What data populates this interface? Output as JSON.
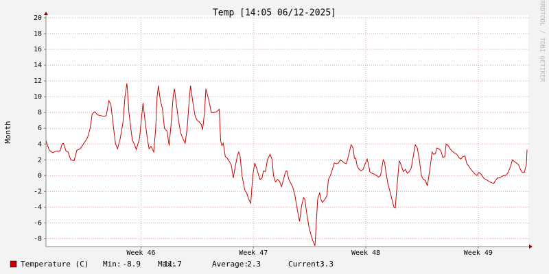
{
  "chart_data": {
    "type": "line",
    "title": "Temp [14:05 06/12-2025]",
    "y_label": "Month",
    "side_text": "RRDTOOL / TOBI OETIKER",
    "x": [
      0,
      5,
      10,
      15,
      21,
      24,
      26,
      30,
      33,
      37,
      42,
      46,
      51,
      56,
      62,
      66,
      69,
      73,
      77,
      82,
      87,
      90,
      94,
      97,
      101,
      104,
      107,
      111,
      115,
      118,
      121,
      124,
      126,
      129,
      132,
      135,
      140,
      143,
      145,
      148,
      151,
      154,
      157,
      161,
      164,
      166,
      168,
      171,
      174,
      177,
      181,
      184,
      187,
      190,
      192,
      195,
      198,
      201,
      204,
      208,
      211,
      214,
      216,
      220,
      223,
      226,
      229,
      232,
      234,
      237,
      239,
      242,
      245,
      247,
      251,
      255,
      259,
      261,
      263,
      265,
      268,
      271,
      274,
      277,
      280,
      283,
      286,
      288,
      290,
      293,
      297,
      300,
      303,
      306,
      309,
      312,
      315,
      318,
      320,
      323,
      325,
      328,
      331,
      335,
      338,
      340,
      343,
      346,
      349,
      352,
      355,
      358,
      360,
      363,
      366,
      369,
      372,
      376,
      379,
      382,
      385,
      387,
      390,
      393,
      396,
      399,
      402,
      404,
      406,
      409,
      411,
      413,
      417,
      420,
      422,
      425,
      428,
      431,
      434,
      437,
      440,
      443,
      446,
      449,
      452,
      456,
      459,
      461,
      463,
      465,
      468,
      471,
      474,
      477,
      480,
      482,
      484,
      487,
      490,
      494,
      497,
      500,
      502,
      504,
      506,
      508,
      511,
      514,
      517,
      520,
      522,
      524,
      526,
      528,
      530,
      534,
      537,
      540,
      543,
      546,
      549,
      552,
      555,
      558,
      561,
      564,
      567,
      570,
      574,
      577,
      579,
      582,
      584,
      587,
      590,
      593,
      596,
      598,
      601,
      604,
      607,
      610,
      614,
      617,
      620,
      623,
      626,
      629,
      632,
      635,
      638,
      641,
      644,
      647,
      650,
      654,
      657,
      660,
      663,
      666,
      669,
      672,
      675,
      678,
      681,
      684,
      687,
      690,
      694,
      697,
      700,
      703,
      706,
      709,
      712,
      715,
      718,
      719
    ],
    "series": [
      {
        "name": "Temperature (C)",
        "color": "#cc0000",
        "values": [
          4.4,
          3.2,
          2.9,
          3.1,
          3.1,
          4.0,
          4.1,
          3.1,
          3.0,
          2.0,
          1.9,
          3.2,
          3.4,
          4.0,
          4.8,
          6.0,
          7.8,
          8.1,
          7.7,
          7.6,
          7.5,
          7.6,
          9.5,
          9.0,
          6.0,
          4.0,
          3.4,
          4.7,
          6.7,
          10.0,
          11.7,
          8.0,
          6.5,
          4.5,
          4.0,
          3.3,
          4.8,
          7.5,
          9.2,
          7.0,
          5.0,
          3.4,
          3.7,
          3.0,
          6.0,
          10.0,
          11.4,
          9.5,
          8.5,
          6.0,
          5.6,
          3.8,
          6.5,
          10.0,
          11.0,
          9.0,
          7.0,
          5.5,
          4.8,
          4.1,
          6.0,
          9.5,
          11.4,
          9.0,
          7.5,
          7.0,
          6.8,
          6.5,
          5.8,
          8.0,
          11.0,
          10.0,
          8.9,
          8.0,
          8.0,
          8.1,
          8.4,
          4.4,
          3.8,
          4.1,
          2.4,
          2.2,
          1.8,
          1.3,
          -0.3,
          1.2,
          2.5,
          3.0,
          2.5,
          0.0,
          -1.8,
          -2.2,
          -3.0,
          -3.5,
          0.0,
          1.6,
          0.9,
          0.0,
          -0.5,
          -0.3,
          0.6,
          0.5,
          2.0,
          2.7,
          2.0,
          0.0,
          -0.8,
          -0.5,
          -0.7,
          -1.4,
          -0.5,
          0.5,
          0.6,
          -0.5,
          -1.0,
          -1.5,
          -2.5,
          -4.5,
          -5.8,
          -3.8,
          -2.8,
          -3.0,
          -5.0,
          -6.5,
          -7.5,
          -8.3,
          -8.9,
          -6.0,
          -3.0,
          -2.2,
          -3.0,
          -3.4,
          -3.0,
          -2.5,
          -0.5,
          0.0,
          0.8,
          1.6,
          1.5,
          1.6,
          2.0,
          1.8,
          1.6,
          1.5,
          2.5,
          3.9,
          3.5,
          2.2,
          2.2,
          1.2,
          0.8,
          0.6,
          0.8,
          1.5,
          2.1,
          1.4,
          0.5,
          0.3,
          0.2,
          0.0,
          -0.2,
          0.0,
          1.0,
          2.0,
          1.7,
          0.5,
          -1.0,
          -2.0,
          -3.0,
          -4.0,
          -4.1,
          -2.0,
          0.0,
          1.9,
          1.5,
          0.5,
          0.8,
          0.3,
          0.5,
          1.0,
          2.5,
          3.9,
          3.5,
          2.0,
          0.0,
          -0.5,
          -0.6,
          -1.3,
          1.0,
          3.0,
          2.7,
          2.8,
          3.5,
          3.4,
          3.2,
          2.3,
          2.4,
          4.0,
          3.8,
          3.4,
          3.1,
          2.9,
          2.7,
          2.3,
          2.1,
          2.4,
          2.5,
          1.5,
          1.2,
          0.8,
          0.5,
          0.2,
          0.0,
          0.4,
          0.2,
          -0.3,
          -0.5,
          -0.6,
          -0.8,
          -0.9,
          -1.0,
          -0.6,
          -0.3,
          -0.3,
          -0.1,
          0.0,
          0.0,
          0.3,
          1.1,
          2.0,
          1.8,
          1.6,
          1.4,
          0.8,
          0.4,
          0.4,
          1.5,
          3.3
        ]
      }
    ],
    "xlim": [
      0,
      721
    ],
    "xticks": [
      {
        "value": 142,
        "label": "Week 46"
      },
      {
        "value": 310,
        "label": "Week 47"
      },
      {
        "value": 478,
        "label": "Week 48"
      },
      {
        "value": 646,
        "label": "Week 49"
      }
    ],
    "ylim": [
      -9,
      20
    ],
    "yticks": [
      -8,
      -6,
      -4,
      -2,
      0,
      2,
      4,
      6,
      8,
      10,
      12,
      14,
      16,
      18,
      20
    ],
    "grid": true,
    "stats": [
      {
        "label": "Min:",
        "value": -8.9
      },
      {
        "label": "Max:",
        "value": 11.7
      },
      {
        "label": "Average:",
        "value": 2.3
      },
      {
        "label": "Current:",
        "value": 3.3
      }
    ]
  }
}
